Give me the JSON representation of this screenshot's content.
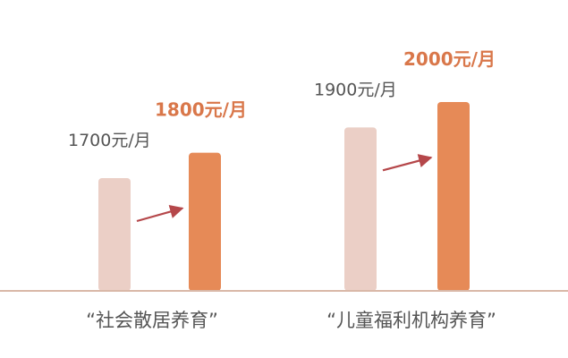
{
  "chart_data": {
    "type": "bar",
    "categories": [
      "“社会散居养育”",
      "“儿童福利机构养育”"
    ],
    "series": [
      {
        "values": [
          1700,
          1900
        ],
        "labels": [
          "1700元/月",
          "1900元/月"
        ]
      },
      {
        "values": [
          1800,
          2000
        ],
        "labels": [
          "1800元/月",
          "2000元/月"
        ]
      }
    ],
    "ylim": [
      1500,
      2050
    ],
    "grid": false,
    "colors": {
      "old_bar": "#ebcfc6",
      "new_bar": "#e68a57",
      "arrow": "#b5474a",
      "baseline": "#d9b8a8"
    }
  }
}
